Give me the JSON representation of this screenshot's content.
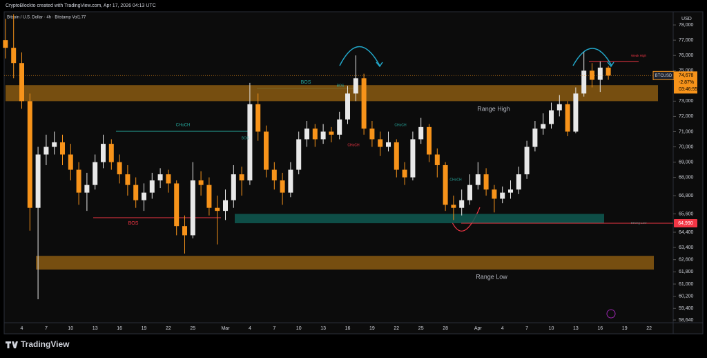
{
  "chart_data": {
    "type": "candlestick",
    "title": "CryptoBlockto created with TradingView.com, Apr 17, 2026 04:13 UTC",
    "subtitle": "Bitcoin / U.S. Dollar · 4h · Bitstamp  Vol1.77",
    "currency": "USD",
    "watermark": "TradingView",
    "symbol": "BTCUSD",
    "change": {
      "value": -2.87,
      "label": "-2.87%"
    },
    "countdown": "03:46:55",
    "last_price": {
      "value": 74678,
      "label": "74,678"
    },
    "price_line": {
      "value": 64990,
      "label": "64,990",
      "color": "#f23645"
    },
    "up_color": "#e8e8e8",
    "down_color": "#f7931a",
    "categories": [
      null,
      null,
      "4",
      null,
      null,
      "7",
      null,
      null,
      "10",
      null,
      null,
      "13",
      null,
      null,
      "16",
      null,
      null,
      "19",
      null,
      null,
      "22",
      null,
      null,
      "25",
      null,
      null,
      null,
      "Mar",
      null,
      null,
      "4",
      null,
      null,
      "7",
      null,
      null,
      "10",
      null,
      null,
      "13",
      null,
      null,
      "16",
      null,
      null,
      "19",
      null,
      null,
      "22",
      null,
      null,
      "25",
      null,
      null,
      "28",
      null,
      null,
      null,
      "Apr",
      null,
      null,
      "4",
      null,
      null,
      "7",
      null,
      null,
      "10",
      null,
      null,
      "13",
      null,
      null,
      "16",
      null,
      null,
      "19",
      null,
      null,
      "22",
      null,
      null,
      null
    ],
    "open": [
      77000,
      76500,
      75500,
      73000,
      66000,
      69500,
      70000,
      70300,
      69500,
      68500,
      67000,
      67500,
      69000,
      70200,
      69000,
      68200,
      67500,
      66500,
      67000,
      67800,
      68200,
      67600,
      64800,
      64200,
      67800,
      67500,
      66000,
      65800,
      66500,
      68200,
      67800,
      72800,
      71000,
      68500,
      67800,
      67000,
      68500,
      70500,
      71200,
      70500,
      71000,
      70800,
      71800,
      73500,
      74500,
      71200,
      70500,
      70000,
      70300,
      68500,
      68000,
      70500,
      71300,
      69500,
      68800,
      66200,
      66000,
      66500,
      67500,
      68200,
      67200,
      66600,
      67000,
      67200,
      68200,
      70000,
      71200,
      71500,
      72400,
      72800,
      71000,
      73500,
      75000,
      74400,
      75200,
      null,
      null,
      null,
      null,
      null,
      null,
      null,
      null
    ],
    "high": [
      78400,
      78700,
      76200,
      73500,
      70000,
      70800,
      71000,
      70800,
      70200,
      69000,
      68300,
      69500,
      70800,
      70500,
      69500,
      68800,
      68000,
      67600,
      68300,
      68600,
      68500,
      67800,
      65500,
      69000,
      68400,
      68000,
      66800,
      67200,
      68800,
      68700,
      74200,
      73500,
      71400,
      69000,
      68300,
      69000,
      71000,
      71700,
      71500,
      71500,
      71300,
      72300,
      74000,
      76000,
      74800,
      71700,
      71000,
      71000,
      70500,
      69000,
      71000,
      71900,
      71500,
      69900,
      69000,
      66800,
      67200,
      68200,
      69000,
      68600,
      67500,
      67400,
      67800,
      68700,
      70400,
      71700,
      72200,
      72900,
      73400,
      73000,
      73900,
      76200,
      75500,
      75600,
      75300,
      null,
      null,
      null,
      null,
      null,
      null,
      null,
      null
    ],
    "low": [
      75800,
      74500,
      72500,
      64500,
      60000,
      68800,
      69500,
      68800,
      67800,
      66200,
      65800,
      67200,
      68600,
      68500,
      67600,
      66800,
      66000,
      65800,
      66600,
      67300,
      67000,
      64200,
      63000,
      64000,
      66800,
      65500,
      63600,
      65200,
      66000,
      66800,
      67500,
      70400,
      68000,
      67200,
      66200,
      66700,
      68200,
      70000,
      70000,
      70200,
      70300,
      70500,
      71500,
      73000,
      70800,
      70000,
      69400,
      69700,
      68000,
      67500,
      67800,
      70200,
      69000,
      68000,
      65800,
      65200,
      65500,
      66200,
      67200,
      66800,
      65700,
      66300,
      66600,
      66900,
      67900,
      69700,
      70800,
      71200,
      72000,
      70700,
      70900,
      73300,
      73900,
      73600,
      74400,
      null,
      null,
      null,
      null,
      null,
      null,
      null,
      null
    ],
    "close": [
      76500,
      75500,
      73000,
      66000,
      69500,
      70000,
      70300,
      69500,
      68500,
      67000,
      67500,
      69000,
      70200,
      69000,
      68200,
      67500,
      66500,
      67000,
      67800,
      68200,
      67600,
      64800,
      64200,
      67800,
      67500,
      66000,
      65800,
      66500,
      68200,
      67800,
      72800,
      71000,
      68500,
      67800,
      67000,
      68500,
      70500,
      71200,
      70500,
      71000,
      70800,
      71800,
      73500,
      74500,
      71200,
      70500,
      70000,
      70300,
      68500,
      68000,
      70500,
      71300,
      69500,
      68800,
      66200,
      66000,
      66500,
      67500,
      68200,
      67200,
      66600,
      67000,
      67200,
      68200,
      70000,
      71200,
      71500,
      72400,
      72800,
      71000,
      73500,
      75000,
      74400,
      75200,
      74678,
      null,
      null,
      null,
      null,
      null,
      null,
      null,
      null
    ],
    "ylim": [
      58460,
      78820
    ],
    "yticks": [
      {
        "value": 78000,
        "label": "78,000"
      },
      {
        "value": 77000,
        "label": "77,000"
      },
      {
        "value": 76000,
        "label": "76,000"
      },
      {
        "value": 75000,
        "label": "75,000"
      },
      {
        "value": 73000,
        "label": "73,000"
      },
      {
        "value": 72000,
        "label": "72,000"
      },
      {
        "value": 71000,
        "label": "71,000"
      },
      {
        "value": 70000,
        "label": "70,000"
      },
      {
        "value": 69000,
        "label": "69,000"
      },
      {
        "value": 68000,
        "label": "68,000"
      },
      {
        "value": 66800,
        "label": "66,800"
      },
      {
        "value": 65600,
        "label": "65,600"
      },
      {
        "value": 64400,
        "label": "64,400"
      },
      {
        "value": 63400,
        "label": "63,400"
      },
      {
        "value": 62600,
        "label": "62,600"
      },
      {
        "value": 61800,
        "label": "61,800"
      },
      {
        "value": 61000,
        "label": "61,000"
      },
      {
        "value": 60200,
        "label": "60,200"
      },
      {
        "value": 59400,
        "label": "59,400"
      },
      {
        "value": 58640,
        "label": "58,640"
      }
    ],
    "grid": false,
    "zones": [
      {
        "low": 73000,
        "high": 74050,
        "color": "#8a5a12"
      },
      {
        "low": 64990,
        "high": 65600,
        "color": "#0f5a52"
      },
      {
        "low": 61950,
        "high": 62850,
        "color": "#8a5a12"
      }
    ],
    "annotations": [
      {
        "text": "BOS",
        "color": "#26a69a"
      },
      {
        "text": "CHoCH",
        "color": "#26a69a"
      },
      {
        "text": "BOS",
        "color": "#f23645"
      },
      {
        "text": "Range High",
        "color": "#b2b5be"
      },
      {
        "text": "Range Low",
        "color": "#b2b5be"
      },
      {
        "text": "Strong Low",
        "color": "#26a69a"
      },
      {
        "text": "Weak High",
        "color": "#f23645"
      },
      {
        "text": "BOS",
        "color": "#26a69a"
      },
      {
        "text": "CHoCH",
        "color": "#26a69a"
      },
      {
        "text": "CHoCH",
        "color": "#f23645"
      },
      {
        "text": "CHoCH",
        "color": "#26a69a"
      },
      {
        "text": "BOS",
        "color": "#26a69a"
      }
    ]
  }
}
